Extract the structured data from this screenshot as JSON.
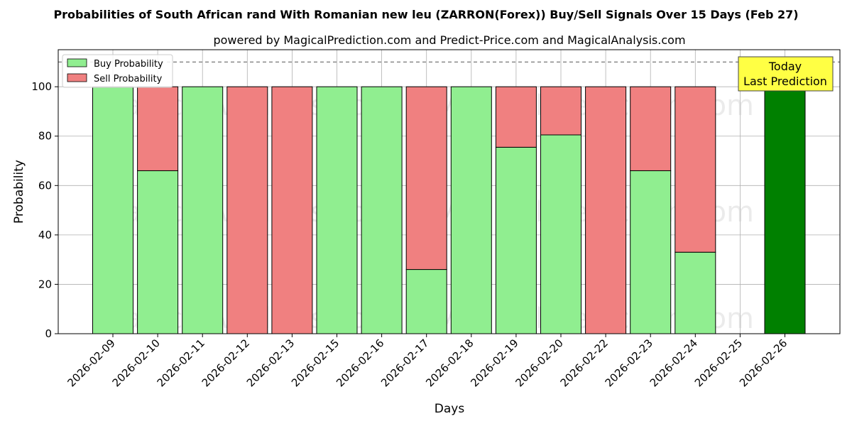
{
  "chart_data": {
    "type": "bar",
    "stacked": true,
    "title": "Probabilities of South African rand With Romanian new leu (ZARRON(Forex)) Buy/Sell Signals Over 15 Days (Feb 27)",
    "subtitle": "powered by MagicalPrediction.com and Predict-Price.com and MagicalAnalysis.com",
    "xlabel": "Days",
    "ylabel": "Probability",
    "ylim": [
      0,
      115
    ],
    "yticks": [
      0,
      20,
      40,
      60,
      80,
      100
    ],
    "grid": true,
    "legend_placement": "top-left",
    "reference_line": 110,
    "categories": [
      "2026-02-09",
      "2026-02-10",
      "2026-02-11",
      "2026-02-12",
      "2026-02-13",
      "2026-02-15",
      "2026-02-16",
      "2026-02-17",
      "2026-02-18",
      "2026-02-19",
      "2026-02-20",
      "2026-02-22",
      "2026-02-23",
      "2026-02-24",
      "2026-02-25",
      "2026-02-26"
    ],
    "series": [
      {
        "name": "Buy Probability",
        "color": "#90ee90",
        "values": [
          100,
          66,
          100,
          0,
          0,
          100,
          100,
          26,
          100,
          75.5,
          80.5,
          0,
          66,
          33,
          null,
          null
        ]
      },
      {
        "name": "Sell Probability",
        "color": "#f08080",
        "values": [
          0,
          34,
          0,
          100,
          100,
          0,
          0,
          74,
          0,
          24.5,
          19.5,
          100,
          34,
          67,
          null,
          null
        ]
      }
    ],
    "today_bar": {
      "category": "2026-02-26",
      "value": 100,
      "color": "#008000"
    },
    "annotation": {
      "line1": "Today",
      "line2": "Last Prediction",
      "color": "#ffff44"
    },
    "watermarks": [
      "MagicalAnalysis.com",
      "MagicalPrediction.com"
    ]
  }
}
